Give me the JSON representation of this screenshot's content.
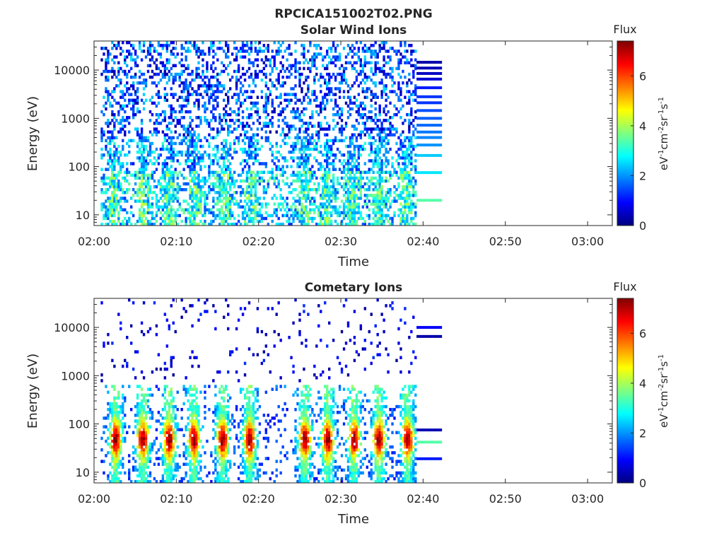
{
  "figure_title": "RPCICA151002T02.PNG",
  "colormap": [
    "#00007f",
    "#0000ff",
    "#007fff",
    "#00ffff",
    "#7fff7f",
    "#ffff00",
    "#ff7f00",
    "#ff0000",
    "#7f0000"
  ],
  "chart_data": [
    {
      "type": "heatmap",
      "title": "Solar Wind Ions",
      "xlabel": "Time",
      "ylabel": "Energy (eV)",
      "x_ticks": [
        "02:00",
        "02:10",
        "02:20",
        "02:30",
        "02:40",
        "02:50",
        "03:00"
      ],
      "x_tick_minutes": [
        0,
        10,
        20,
        30,
        40,
        50,
        60
      ],
      "xlim_minutes": [
        0,
        63
      ],
      "y_scale": "log",
      "y_ticks": [
        "10",
        "100",
        "1000",
        "10000"
      ],
      "y_tick_values": [
        10,
        100,
        1000,
        10000
      ],
      "ylim": [
        6,
        40000
      ],
      "colorbar": {
        "title": "Flux",
        "label": "eV-1cm-2sr-1s-1",
        "ticks": [
          "0",
          "2",
          "4",
          "6"
        ],
        "tick_values": [
          0,
          2,
          4,
          6
        ],
        "range": [
          0,
          7.4
        ]
      },
      "data_range_minutes": [
        0.8,
        39.2
      ],
      "spike_minutes": [
        2.2,
        5.8,
        9.0,
        12.0,
        15.8,
        19.0,
        25.5,
        28.2,
        31.2,
        34.5,
        37.8
      ],
      "band_energies": [
        20,
        75,
        170,
        280,
        400,
        520,
        720,
        1000,
        1450,
        2100,
        2800,
        4300,
        6500,
        8500,
        11000,
        14500
      ],
      "band_levels": [
        3.4,
        2.6,
        2.4,
        2.0,
        1.9,
        1.8,
        1.7,
        1.6,
        1.5,
        1.3,
        1.3,
        1.1,
        0.6,
        0.5,
        0.4,
        0.3
      ],
      "band_minutes": [
        39.2,
        42.3
      ]
    },
    {
      "type": "heatmap",
      "title": "Cometary Ions",
      "xlabel": "Time",
      "ylabel": "Energy (eV)",
      "x_ticks": [
        "02:00",
        "02:10",
        "02:20",
        "02:30",
        "02:40",
        "02:50",
        "03:00"
      ],
      "x_tick_minutes": [
        0,
        10,
        20,
        30,
        40,
        50,
        60
      ],
      "xlim_minutes": [
        0,
        63
      ],
      "y_scale": "log",
      "y_ticks": [
        "10",
        "100",
        "1000",
        "10000"
      ],
      "y_tick_values": [
        10,
        100,
        1000,
        10000
      ],
      "ylim": [
        6,
        40000
      ],
      "colorbar": {
        "title": "Flux",
        "label": "eV-1cm-2sr-1s-1",
        "ticks": [
          "0",
          "2",
          "4",
          "6"
        ],
        "tick_values": [
          0,
          2,
          4,
          6
        ],
        "range": [
          0,
          7.4
        ]
      },
      "data_range_minutes": [
        0.8,
        39.2
      ],
      "spike_minutes": [
        2.5,
        5.8,
        9.0,
        12.0,
        15.5,
        18.8,
        25.5,
        28.3,
        31.5,
        34.5,
        38.0
      ],
      "band_energies": [
        19,
        42,
        75,
        6500,
        10000
      ],
      "band_levels": [
        1.1,
        3.4,
        0.4,
        0.3,
        0.9
      ],
      "band_minutes": [
        39.2,
        42.3
      ]
    }
  ]
}
